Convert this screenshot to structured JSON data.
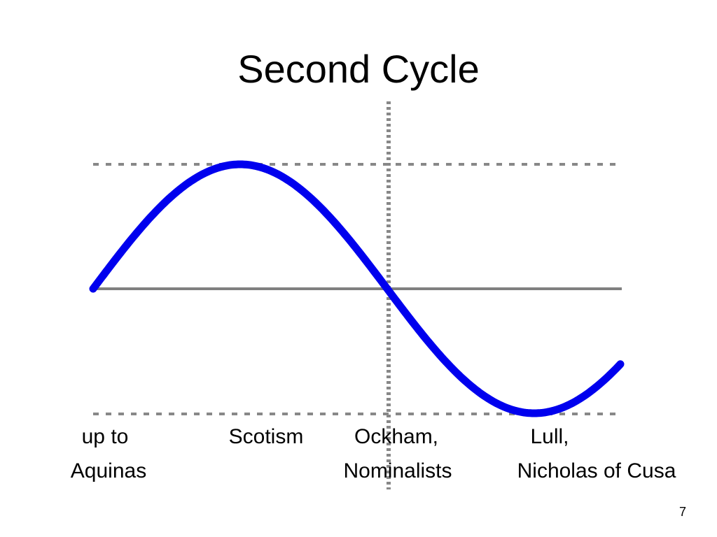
{
  "title": "Second Cycle",
  "labels": [
    {
      "lines": [
        "up to",
        "Aquinas"
      ]
    },
    {
      "lines": [
        "Scotism"
      ]
    },
    {
      "lines": [
        "Ockham,",
        "Nominalists"
      ]
    },
    {
      "lines": [
        "Lull,",
        "Nicholas of Cusa"
      ]
    }
  ],
  "page_number": "7"
}
